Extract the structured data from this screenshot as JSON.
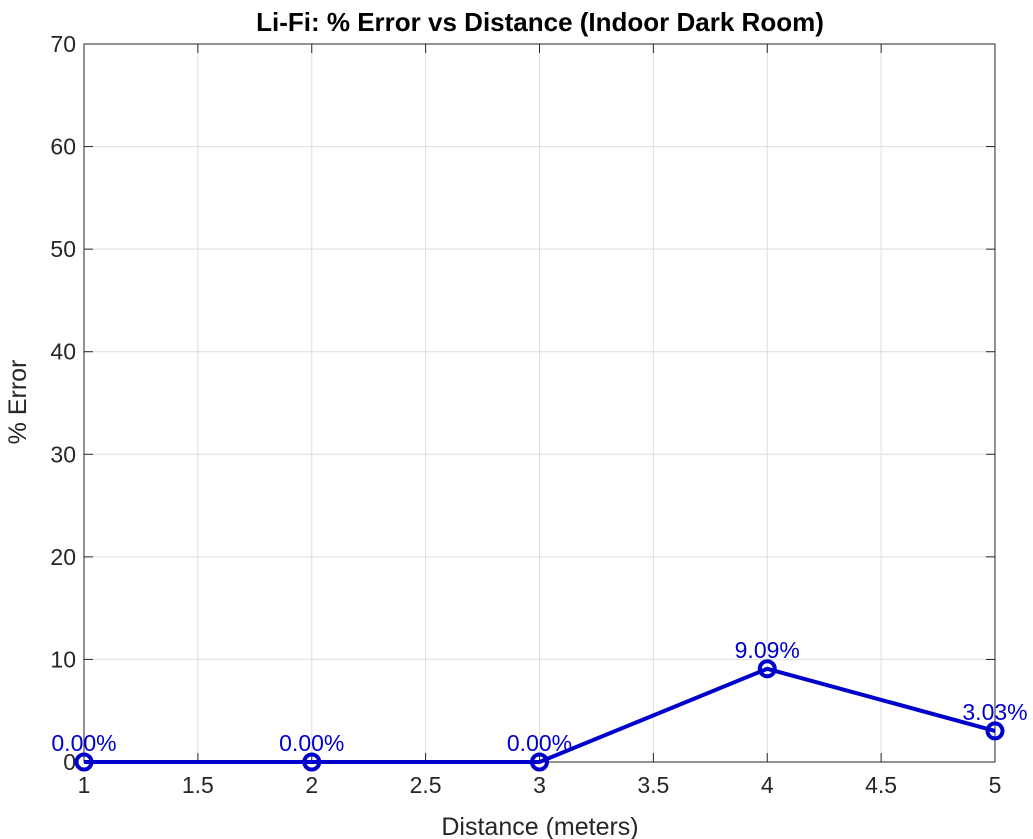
{
  "chart_data": {
    "type": "line",
    "title": "Li-Fi: % Error vs Distance (Indoor Dark Room)",
    "xlabel": "Distance (meters)",
    "ylabel": "% Error",
    "xlim": [
      1,
      5
    ],
    "ylim": [
      0,
      70
    ],
    "xticks": [
      "1",
      "1.5",
      "2",
      "2.5",
      "3",
      "3.5",
      "4",
      "4.5",
      "5"
    ],
    "xtick_values": [
      1,
      1.5,
      2,
      2.5,
      3,
      3.5,
      4,
      4.5,
      5
    ],
    "yticks": [
      "0",
      "10",
      "20",
      "30",
      "40",
      "50",
      "60",
      "70"
    ],
    "ytick_values": [
      0,
      10,
      20,
      30,
      40,
      50,
      60,
      70
    ],
    "grid": true,
    "series": [
      {
        "x": [
          1,
          2,
          3,
          4,
          5
        ],
        "y": [
          0,
          0,
          0,
          9.09,
          3.03
        ],
        "labels": [
          "0.00%",
          "0.00%",
          "0.00%",
          "9.09%",
          "3.03%"
        ],
        "color": "#0000cc",
        "marker": "circle"
      }
    ]
  }
}
